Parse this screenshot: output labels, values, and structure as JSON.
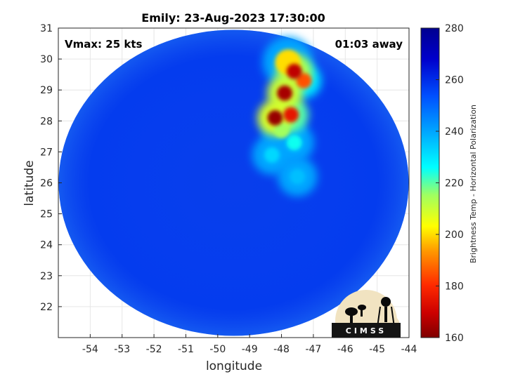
{
  "chart_data": {
    "type": "heatmap",
    "title": "Emily: 23-Aug-2023 17:30:00",
    "xlabel": "longitude",
    "ylabel": "latitude",
    "xlim": [
      -55,
      -44
    ],
    "ylim": [
      21,
      31
    ],
    "xticks": [
      -54,
      -53,
      -52,
      -51,
      -50,
      -49,
      -48,
      -47,
      -46,
      -45,
      -44
    ],
    "yticks": [
      22,
      23,
      24,
      25,
      26,
      27,
      28,
      29,
      30,
      31
    ],
    "grid": true,
    "annotations": {
      "left": "Vmax: 25 kts",
      "right": "01:03 away"
    },
    "colorbar": {
      "label": "Brightness Temp - Horizontal Polarization",
      "range": [
        160,
        280
      ],
      "ticks": [
        160,
        180,
        200,
        220,
        240,
        260,
        280
      ],
      "colormap": [
        "#7f0000",
        "#ff0000",
        "#ffff00",
        "#00ffff",
        "#0080ff",
        "#00008f"
      ]
    },
    "swath": {
      "center_lon": -49.5,
      "center_lat": 26.0,
      "background_temp": 258
    },
    "cold_features": [
      {
        "lon": -47.6,
        "lat": 29.6,
        "temp": 168
      },
      {
        "lon": -47.9,
        "lat": 28.9,
        "temp": 165
      },
      {
        "lon": -48.2,
        "lat": 28.1,
        "temp": 163
      },
      {
        "lon": -47.7,
        "lat": 28.2,
        "temp": 175
      },
      {
        "lon": -47.3,
        "lat": 29.3,
        "temp": 185
      },
      {
        "lon": -47.8,
        "lat": 29.9,
        "temp": 200
      },
      {
        "lon": -48.0,
        "lat": 27.7,
        "temp": 215
      },
      {
        "lon": -47.6,
        "lat": 27.3,
        "temp": 225
      },
      {
        "lon": -48.3,
        "lat": 26.9,
        "temp": 232
      },
      {
        "lon": -47.5,
        "lat": 26.2,
        "temp": 236
      }
    ],
    "logo_text": "CIMSS"
  }
}
